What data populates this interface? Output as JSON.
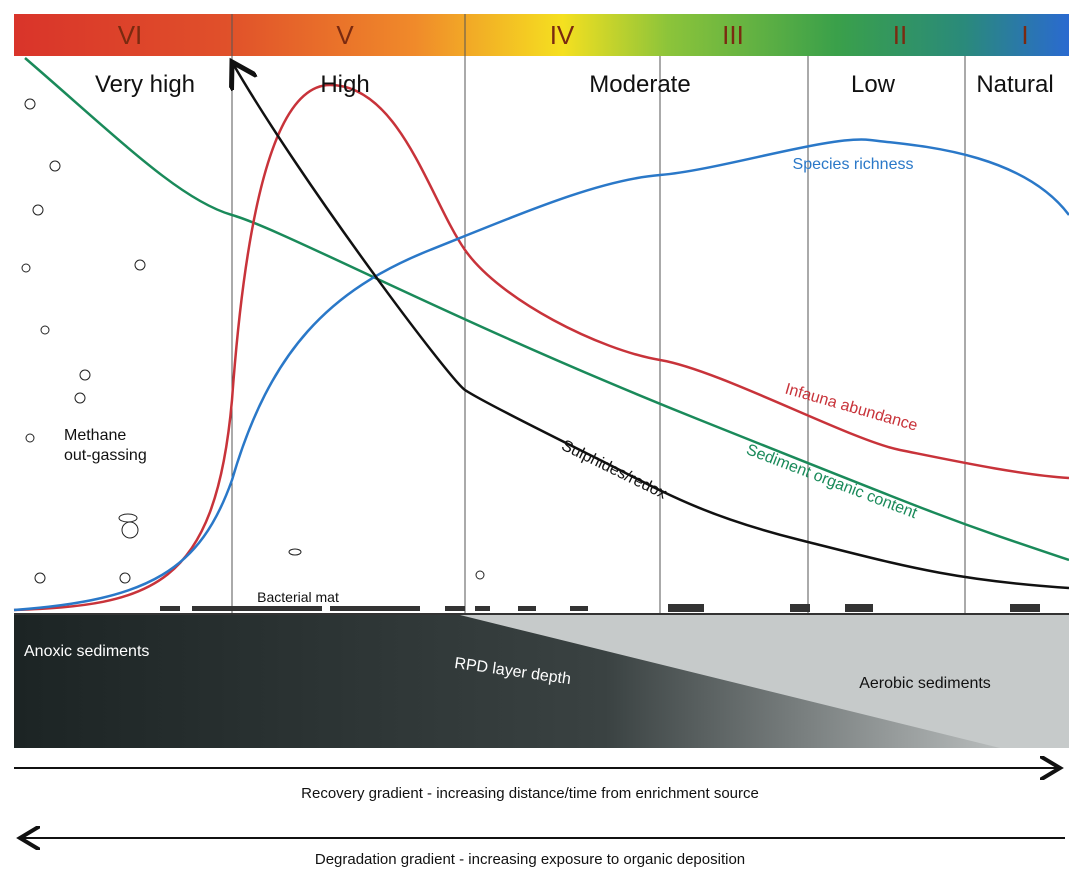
{
  "zones": [
    {
      "numeral": "VI",
      "label": "Very high"
    },
    {
      "numeral": "V",
      "label": "High"
    },
    {
      "numeral": "IV",
      "label": "Moderate"
    },
    {
      "numeral": "III",
      "label": ""
    },
    {
      "numeral": "II",
      "label": "Low"
    },
    {
      "numeral": "I",
      "label": "Natural"
    }
  ],
  "curve_labels": {
    "species_richness": "Species richness",
    "infauna_abundance": "Infauna abundance",
    "sediment_organic_content": "Sediment organic content",
    "sulphides_redox": "Sulphides/redox"
  },
  "annotations": {
    "methane": [
      "Methane",
      "out-gassing"
    ],
    "bacterial_mat": "Bacterial mat",
    "anoxic_sediments": "Anoxic sediments",
    "rpd_layer_depth": "RPD layer depth",
    "aerobic_sediments": "Aerobic sediments"
  },
  "gradients": {
    "recovery": "Recovery gradient - increasing distance/time from enrichment source",
    "degradation": "Degradation gradient - increasing exposure to organic deposition"
  }
}
